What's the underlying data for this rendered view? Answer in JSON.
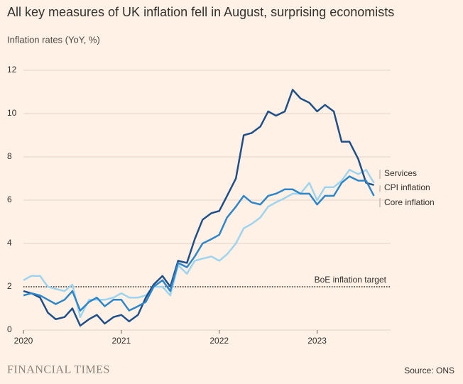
{
  "chart_data": {
    "type": "line",
    "title": "All key measures of UK inflation fell in August, surprising economists",
    "subtitle": "Inflation rates (YoY, %)",
    "source": "Source: ONS",
    "brand": "FINANCIAL TIMES",
    "x": [
      2020,
      2020.08,
      2020.17,
      2020.25,
      2020.33,
      2020.42,
      2020.5,
      2020.58,
      2020.67,
      2020.75,
      2020.83,
      2020.92,
      2021,
      2021.08,
      2021.17,
      2021.25,
      2021.33,
      2021.42,
      2021.5,
      2021.58,
      2021.67,
      2021.75,
      2021.83,
      2021.92,
      2022,
      2022.08,
      2022.17,
      2022.25,
      2022.33,
      2022.42,
      2022.5,
      2022.58,
      2022.67,
      2022.75,
      2022.83,
      2022.92,
      2023,
      2023.08,
      2023.17,
      2023.25,
      2023.33,
      2023.42,
      2023.5,
      2023.58
    ],
    "series": [
      {
        "name": "Services",
        "color": "#9fd4ef",
        "values": [
          2.3,
          2.5,
          2.5,
          2.0,
          1.9,
          1.8,
          2.1,
          0.6,
          1.4,
          1.4,
          1.4,
          1.5,
          1.7,
          1.5,
          1.5,
          1.6,
          2.0,
          2.0,
          1.6,
          3.0,
          2.6,
          3.2,
          3.3,
          3.4,
          3.2,
          3.5,
          4.0,
          4.7,
          4.9,
          5.2,
          5.7,
          5.9,
          6.1,
          6.3,
          6.3,
          6.8,
          6.0,
          6.6,
          6.6,
          6.9,
          7.4,
          7.2,
          7.4,
          6.8
        ]
      },
      {
        "name": "CPI inflation",
        "color": "#1f4f88",
        "values": [
          1.8,
          1.7,
          1.5,
          0.8,
          0.5,
          0.6,
          1.0,
          0.2,
          0.5,
          0.7,
          0.3,
          0.6,
          0.7,
          0.4,
          0.7,
          1.5,
          2.1,
          2.5,
          2.0,
          3.2,
          3.1,
          4.2,
          5.1,
          5.4,
          5.5,
          6.2,
          7.0,
          9.0,
          9.1,
          9.4,
          10.1,
          9.9,
          10.1,
          11.1,
          10.7,
          10.5,
          10.1,
          10.4,
          10.1,
          8.7,
          8.7,
          7.9,
          6.8,
          6.7
        ]
      },
      {
        "name": "Core inflation",
        "color": "#2e86c8",
        "values": [
          1.6,
          1.7,
          1.6,
          1.4,
          1.2,
          1.4,
          1.8,
          0.9,
          1.3,
          1.5,
          1.1,
          1.4,
          1.4,
          0.9,
          1.1,
          1.3,
          2.0,
          2.3,
          1.8,
          3.1,
          2.9,
          3.4,
          4.0,
          4.2,
          4.4,
          5.2,
          5.7,
          6.2,
          5.9,
          5.8,
          6.2,
          6.3,
          6.5,
          6.5,
          6.3,
          6.3,
          5.8,
          6.2,
          6.2,
          6.8,
          7.1,
          6.9,
          6.9,
          6.2
        ]
      }
    ],
    "target": {
      "value": 2,
      "label": "BoE inflation target"
    },
    "xlim": [
      2020,
      2023.75
    ],
    "xticks": [
      2020,
      2021,
      2022,
      2023
    ],
    "ylim": [
      0,
      12
    ],
    "yticks": [
      0,
      2,
      4,
      6,
      8,
      10,
      12
    ],
    "grid": true
  }
}
